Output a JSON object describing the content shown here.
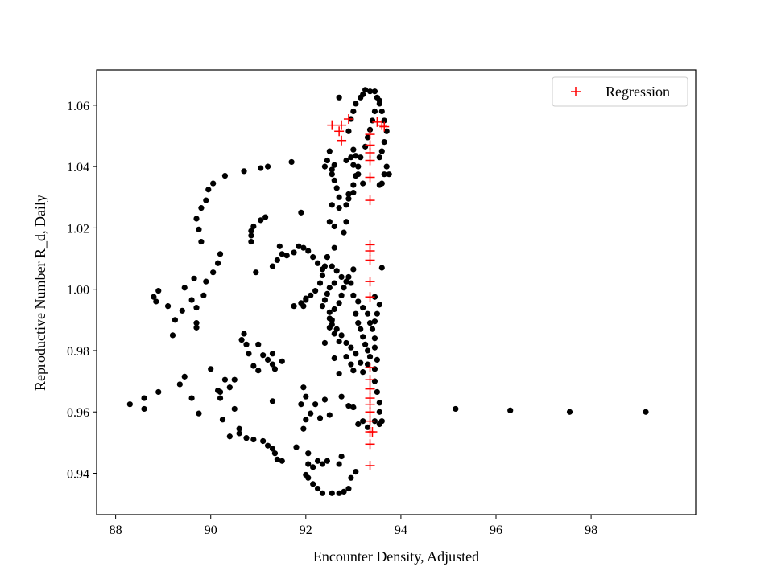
{
  "chart_data": {
    "type": "scatter",
    "title": "",
    "xlabel": "Encounter Density, Adjusted",
    "ylabel": "Reproductive Number R_d, Daily",
    "xlim": [
      87.6,
      100.2
    ],
    "ylim": [
      0.9265,
      1.0715
    ],
    "xticks": [
      88,
      90,
      92,
      94,
      96,
      98
    ],
    "yticks": [
      0.94,
      0.96,
      0.98,
      1.0,
      1.02,
      1.04,
      1.06
    ],
    "xtick_labels": [
      "88",
      "90",
      "92",
      "94",
      "96",
      "98"
    ],
    "ytick_labels": [
      "0.94",
      "0.96",
      "0.98",
      "1.00",
      "1.02",
      "1.04",
      "1.06"
    ],
    "grid": false,
    "legend_position": "top-right",
    "series": [
      {
        "marker": "dot",
        "color": "#000000",
        "points": [
          [
            88.3,
            0.9625
          ],
          [
            88.6,
            0.9645
          ],
          [
            88.6,
            0.961
          ],
          [
            88.9,
            0.9665
          ],
          [
            89.2,
            0.985
          ],
          [
            89.35,
            0.969
          ],
          [
            89.45,
            0.9715
          ],
          [
            89.6,
            0.9645
          ],
          [
            89.75,
            0.9595
          ],
          [
            90.0,
            0.974
          ],
          [
            90.2,
            0.9665
          ],
          [
            90.2,
            0.9645
          ],
          [
            90.25,
            0.9575
          ],
          [
            90.4,
            0.952
          ],
          [
            90.5,
            0.961
          ],
          [
            90.6,
            0.9545
          ],
          [
            90.6,
            0.953
          ],
          [
            90.75,
            0.9515
          ],
          [
            90.9,
            0.951
          ],
          [
            91.1,
            0.9505
          ],
          [
            91.2,
            0.949
          ],
          [
            91.3,
            0.948
          ],
          [
            91.35,
            0.9465
          ],
          [
            91.4,
            0.9445
          ],
          [
            91.5,
            0.944
          ],
          [
            91.3,
            0.9635
          ],
          [
            91.8,
            0.9485
          ],
          [
            91.9,
            0.9625
          ],
          [
            91.95,
            0.968
          ],
          [
            92.0,
            0.965
          ],
          [
            88.8,
            0.9975
          ],
          [
            88.85,
            0.996
          ],
          [
            88.9,
            0.9995
          ],
          [
            89.1,
            0.9945
          ],
          [
            89.25,
            0.99
          ],
          [
            89.4,
            0.993
          ],
          [
            89.45,
            1.0005
          ],
          [
            89.6,
            0.9965
          ],
          [
            89.65,
            1.0035
          ],
          [
            89.7,
            0.994
          ],
          [
            89.7,
            0.989
          ],
          [
            89.7,
            0.9875
          ],
          [
            89.85,
            0.998
          ],
          [
            89.9,
            1.0025
          ],
          [
            90.05,
            1.0055
          ],
          [
            90.15,
            1.0085
          ],
          [
            90.2,
            1.0115
          ],
          [
            89.8,
            1.0155
          ],
          [
            89.75,
            1.0195
          ],
          [
            89.7,
            1.023
          ],
          [
            89.8,
            1.0265
          ],
          [
            89.9,
            1.029
          ],
          [
            89.95,
            1.0325
          ],
          [
            90.05,
            1.0345
          ],
          [
            90.3,
            1.037
          ],
          [
            90.7,
            1.0385
          ],
          [
            90.95,
            1.0055
          ],
          [
            90.85,
            1.0155
          ],
          [
            90.85,
            1.0175
          ],
          [
            90.85,
            1.019
          ],
          [
            90.9,
            1.0205
          ],
          [
            91.05,
            1.0225
          ],
          [
            91.15,
            1.0235
          ],
          [
            91.3,
            1.0075
          ],
          [
            91.4,
            1.0095
          ],
          [
            91.5,
            1.0115
          ],
          [
            91.45,
            1.014
          ],
          [
            91.6,
            1.011
          ],
          [
            91.75,
            1.012
          ],
          [
            91.85,
            1.014
          ],
          [
            91.95,
            1.0135
          ],
          [
            92.05,
            1.0125
          ],
          [
            92.15,
            1.0105
          ],
          [
            92.25,
            1.0085
          ],
          [
            92.35,
            1.0065
          ],
          [
            91.2,
            1.04
          ],
          [
            91.05,
            1.0395
          ],
          [
            91.7,
            1.0415
          ],
          [
            91.9,
            1.025
          ],
          [
            92.4,
            1.04
          ],
          [
            92.45,
            1.042
          ],
          [
            92.5,
            1.045
          ],
          [
            92.55,
            1.039
          ],
          [
            92.6,
            1.0355
          ],
          [
            92.65,
            1.033
          ],
          [
            92.7,
            1.03
          ],
          [
            92.55,
            1.0275
          ],
          [
            92.7,
            1.0265
          ],
          [
            92.85,
            1.0275
          ],
          [
            92.9,
            1.0295
          ],
          [
            93.0,
            1.0315
          ],
          [
            92.85,
            1.042
          ],
          [
            92.95,
            1.043
          ],
          [
            93.05,
            1.0435
          ],
          [
            92.9,
            1.0515
          ],
          [
            92.95,
            1.0555
          ],
          [
            93.0,
            1.058
          ],
          [
            93.05,
            1.0605
          ],
          [
            93.15,
            1.0625
          ],
          [
            93.2,
            1.0635
          ],
          [
            93.25,
            1.065
          ],
          [
            93.35,
            1.0645
          ],
          [
            93.45,
            1.0645
          ],
          [
            93.5,
            1.0625
          ],
          [
            93.55,
            1.0605
          ],
          [
            93.45,
            1.058
          ],
          [
            93.4,
            1.055
          ],
          [
            93.35,
            1.052
          ],
          [
            93.3,
            1.0495
          ],
          [
            93.25,
            1.0465
          ],
          [
            93.15,
            1.043
          ],
          [
            93.1,
            1.04
          ],
          [
            93.05,
            1.037
          ],
          [
            93.0,
            1.034
          ],
          [
            92.9,
            1.031
          ],
          [
            92.85,
            1.022
          ],
          [
            92.8,
            1.0185
          ],
          [
            92.6,
            1.0205
          ],
          [
            92.5,
            1.022
          ],
          [
            92.6,
            1.0135
          ],
          [
            92.45,
            1.0105
          ],
          [
            92.55,
            1.0075
          ],
          [
            92.65,
            1.006
          ],
          [
            92.75,
            1.004
          ],
          [
            92.85,
            1.0025
          ],
          [
            92.95,
            1.002
          ],
          [
            93.0,
            0.998
          ],
          [
            93.1,
            0.996
          ],
          [
            93.2,
            0.994
          ],
          [
            93.3,
            0.992
          ],
          [
            93.35,
            0.989
          ],
          [
            93.4,
            0.987
          ],
          [
            93.45,
            0.984
          ],
          [
            93.45,
            0.981
          ],
          [
            93.5,
            0.977
          ],
          [
            93.45,
            0.974
          ],
          [
            93.45,
            0.97
          ],
          [
            93.5,
            0.9665
          ],
          [
            93.55,
            0.963
          ],
          [
            93.55,
            0.96
          ],
          [
            93.6,
            0.957
          ],
          [
            93.55,
            0.956
          ],
          [
            93.45,
            0.957
          ],
          [
            93.3,
            0.955
          ],
          [
            93.2,
            0.957
          ],
          [
            93.1,
            0.956
          ],
          [
            93.0,
            0.9615
          ],
          [
            92.9,
            0.962
          ],
          [
            92.75,
            0.965
          ],
          [
            92.5,
            0.959
          ],
          [
            92.4,
            0.964
          ],
          [
            92.3,
            0.958
          ],
          [
            92.2,
            0.9625
          ],
          [
            92.1,
            0.9595
          ],
          [
            92.0,
            0.9575
          ],
          [
            91.95,
            0.9545
          ],
          [
            92.05,
            0.9465
          ],
          [
            92.05,
            0.943
          ],
          [
            92.15,
            0.942
          ],
          [
            92.25,
            0.944
          ],
          [
            92.35,
            0.943
          ],
          [
            92.45,
            0.944
          ],
          [
            92.0,
            0.9395
          ],
          [
            92.05,
            0.9385
          ],
          [
            92.15,
            0.9365
          ],
          [
            92.25,
            0.935
          ],
          [
            92.35,
            0.9335
          ],
          [
            92.55,
            0.9335
          ],
          [
            92.7,
            0.9335
          ],
          [
            92.8,
            0.934
          ],
          [
            92.9,
            0.935
          ],
          [
            92.95,
            0.9385
          ],
          [
            93.05,
            0.9405
          ],
          [
            92.75,
            0.9455
          ],
          [
            92.7,
            0.943
          ],
          [
            92.35,
            0.9945
          ],
          [
            92.4,
            0.9965
          ],
          [
            92.45,
            0.9985
          ],
          [
            92.5,
            1.0005
          ],
          [
            92.6,
            1.002
          ],
          [
            92.5,
            0.9925
          ],
          [
            92.5,
            0.9905
          ],
          [
            92.55,
            0.9885
          ],
          [
            92.6,
            0.9935
          ],
          [
            92.7,
            0.9955
          ],
          [
            92.75,
            0.998
          ],
          [
            92.8,
            1.0005
          ],
          [
            92.9,
            1.004
          ],
          [
            93.0,
            1.0065
          ],
          [
            93.05,
            0.992
          ],
          [
            93.1,
            0.989
          ],
          [
            93.15,
            0.987
          ],
          [
            93.2,
            0.9845
          ],
          [
            93.25,
            0.982
          ],
          [
            93.3,
            0.98
          ],
          [
            93.35,
            0.978
          ],
          [
            93.3,
            0.9755
          ],
          [
            93.2,
            0.973
          ],
          [
            93.15,
            0.976
          ],
          [
            93.05,
            0.979
          ],
          [
            92.95,
            0.981
          ],
          [
            92.85,
            0.9825
          ],
          [
            92.75,
            0.985
          ],
          [
            92.65,
            0.987
          ],
          [
            92.7,
            0.9725
          ],
          [
            92.6,
            0.9775
          ],
          [
            93.45,
            0.9895
          ],
          [
            93.5,
            0.992
          ],
          [
            93.55,
            0.995
          ],
          [
            93.45,
            0.9975
          ],
          [
            93.6,
            1.007
          ],
          [
            93.55,
            1.034
          ],
          [
            93.6,
            1.0345
          ],
          [
            93.65,
            1.0375
          ],
          [
            93.75,
            1.0375
          ],
          [
            93.7,
            1.04
          ],
          [
            93.55,
            1.043
          ],
          [
            93.6,
            1.045
          ],
          [
            93.65,
            1.048
          ],
          [
            93.7,
            1.0515
          ],
          [
            93.65,
            1.055
          ],
          [
            93.6,
            1.058
          ],
          [
            93.55,
            1.0615
          ],
          [
            92.7,
            1.0625
          ],
          [
            93.0,
            1.0455
          ],
          [
            93.0,
            1.0405
          ],
          [
            93.1,
            1.0375
          ],
          [
            93.2,
            1.0345
          ],
          [
            92.6,
            1.0405
          ],
          [
            92.55,
            1.0375
          ],
          [
            92.0,
            0.9965
          ],
          [
            91.95,
            0.9945
          ],
          [
            92.1,
            0.998
          ],
          [
            92.2,
            0.9995
          ],
          [
            92.3,
            1.002
          ],
          [
            92.35,
            1.0045
          ],
          [
            92.4,
            1.0075
          ],
          [
            92.45,
            1.0105
          ],
          [
            92.5,
            0.9875
          ],
          [
            92.55,
            0.99
          ],
          [
            92.6,
            0.9855
          ],
          [
            92.7,
            0.983
          ],
          [
            92.85,
            0.978
          ],
          [
            92.95,
            0.9755
          ],
          [
            93.0,
            0.9735
          ],
          [
            92.4,
            0.9825
          ],
          [
            91.0,
            0.982
          ],
          [
            91.1,
            0.9785
          ],
          [
            91.2,
            0.977
          ],
          [
            91.3,
            0.9755
          ],
          [
            91.35,
            0.974
          ],
          [
            90.7,
            0.9855
          ],
          [
            90.65,
            0.9835
          ],
          [
            90.75,
            0.982
          ],
          [
            90.8,
            0.979
          ],
          [
            90.9,
            0.975
          ],
          [
            91.0,
            0.9735
          ],
          [
            91.3,
            0.979
          ],
          [
            91.5,
            0.9765
          ],
          [
            90.5,
            0.9705
          ],
          [
            90.4,
            0.968
          ],
          [
            91.75,
            0.9945
          ],
          [
            91.9,
            0.9955
          ],
          [
            92.0,
            0.997
          ],
          [
            95.15,
            0.961
          ],
          [
            96.3,
            0.9605
          ],
          [
            97.55,
            0.96
          ],
          [
            99.15,
            0.96
          ],
          [
            90.3,
            0.9705
          ],
          [
            90.15,
            0.967
          ]
        ]
      },
      {
        "name": "Regression",
        "marker": "plus",
        "color": "#ff0000",
        "points": [
          [
            92.55,
            1.0535
          ],
          [
            92.7,
            1.0515
          ],
          [
            92.75,
            1.0535
          ],
          [
            92.75,
            1.0485
          ],
          [
            92.9,
            1.0555
          ],
          [
            93.35,
            1.0505
          ],
          [
            93.35,
            1.047
          ],
          [
            93.35,
            1.0445
          ],
          [
            93.35,
            1.042
          ],
          [
            93.35,
            1.0365
          ],
          [
            93.35,
            1.029
          ],
          [
            93.35,
            1.0145
          ],
          [
            93.35,
            1.0125
          ],
          [
            93.35,
            1.0095
          ],
          [
            93.35,
            1.0025
          ],
          [
            93.35,
            0.9975
          ],
          [
            93.35,
            0.9745
          ],
          [
            93.35,
            0.9705
          ],
          [
            93.35,
            0.9675
          ],
          [
            93.35,
            0.9645
          ],
          [
            93.35,
            0.9625
          ],
          [
            93.35,
            0.96
          ],
          [
            93.35,
            0.957
          ],
          [
            93.35,
            0.9535
          ],
          [
            93.35,
            0.9495
          ],
          [
            93.35,
            0.9425
          ],
          [
            93.5,
            1.0545
          ],
          [
            93.6,
            1.0535
          ],
          [
            93.65,
            1.053
          ],
          [
            93.4,
            0.9535
          ]
        ]
      }
    ]
  }
}
